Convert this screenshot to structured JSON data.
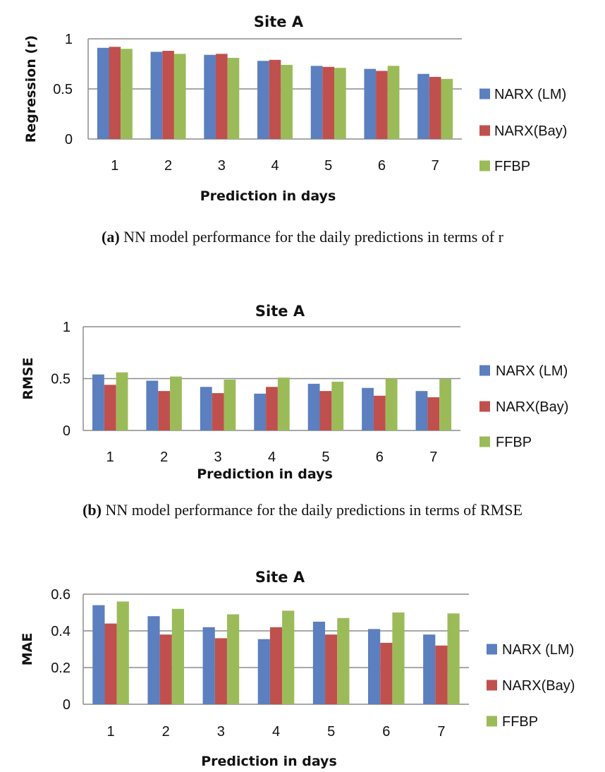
{
  "chart_data": [
    {
      "type": "bar",
      "title": "Site A",
      "xlabel": "Prediction in days",
      "ylabel": "Regression (r)",
      "categories": [
        "1",
        "2",
        "3",
        "4",
        "5",
        "6",
        "7"
      ],
      "ylim": [
        0,
        1
      ],
      "yticks": [
        "0",
        "0.5",
        "1"
      ],
      "yticks_values": [
        0,
        0.5,
        1
      ],
      "grid": true,
      "legend_position": "right",
      "series": [
        {
          "name": "NARX (LM)",
          "color": "#5b7fbf",
          "values": [
            0.91,
            0.87,
            0.84,
            0.78,
            0.73,
            0.7,
            0.65
          ]
        },
        {
          "name": "NARX(Bay)",
          "color": "#c0504d",
          "values": [
            0.92,
            0.88,
            0.85,
            0.79,
            0.72,
            0.68,
            0.62
          ]
        },
        {
          "name": "FFBP",
          "color": "#9bbb59",
          "values": [
            0.9,
            0.85,
            0.81,
            0.74,
            0.71,
            0.73,
            0.6
          ]
        }
      ]
    },
    {
      "type": "bar",
      "title": "Site A",
      "xlabel": "Prediction in days",
      "ylabel": "RMSE",
      "categories": [
        "1",
        "2",
        "3",
        "4",
        "5",
        "6",
        "7"
      ],
      "ylim": [
        0,
        1
      ],
      "yticks": [
        "0",
        "0.5",
        "1"
      ],
      "yticks_values": [
        0,
        0.5,
        1
      ],
      "grid": true,
      "legend_position": "right",
      "series": [
        {
          "name": "NARX (LM)",
          "color": "#5b7fbf",
          "values": [
            0.54,
            0.48,
            0.42,
            0.355,
            0.45,
            0.41,
            0.38
          ]
        },
        {
          "name": "NARX(Bay)",
          "color": "#c0504d",
          "values": [
            0.44,
            0.38,
            0.36,
            0.42,
            0.38,
            0.335,
            0.32
          ]
        },
        {
          "name": "FFBP",
          "color": "#9bbb59",
          "values": [
            0.56,
            0.52,
            0.49,
            0.51,
            0.47,
            0.5,
            0.495
          ]
        }
      ]
    },
    {
      "type": "bar",
      "title": "Site A",
      "xlabel": "Prediction in days",
      "ylabel": "MAE",
      "categories": [
        "1",
        "2",
        "3",
        "4",
        "5",
        "6",
        "7"
      ],
      "ylim": [
        0,
        0.6
      ],
      "yticks": [
        "0",
        "0.2",
        "0.4",
        "0.6"
      ],
      "yticks_values": [
        0,
        0.2,
        0.4,
        0.6
      ],
      "grid": true,
      "legend_position": "right",
      "series": [
        {
          "name": "NARX (LM)",
          "color": "#5b7fbf",
          "values": [
            0.54,
            0.48,
            0.42,
            0.355,
            0.45,
            0.41,
            0.38
          ]
        },
        {
          "name": "NARX(Bay)",
          "color": "#c0504d",
          "values": [
            0.44,
            0.38,
            0.36,
            0.42,
            0.38,
            0.335,
            0.32
          ]
        },
        {
          "name": "FFBP",
          "color": "#9bbb59",
          "values": [
            0.56,
            0.52,
            0.49,
            0.51,
            0.47,
            0.5,
            0.495
          ]
        }
      ]
    }
  ],
  "captions": [
    {
      "label": "(a)",
      "text": " NN model performance for the daily predictions in terms of r"
    },
    {
      "label": "(b)",
      "text": " NN model performance for the daily predictions in terms of RMSE"
    }
  ]
}
